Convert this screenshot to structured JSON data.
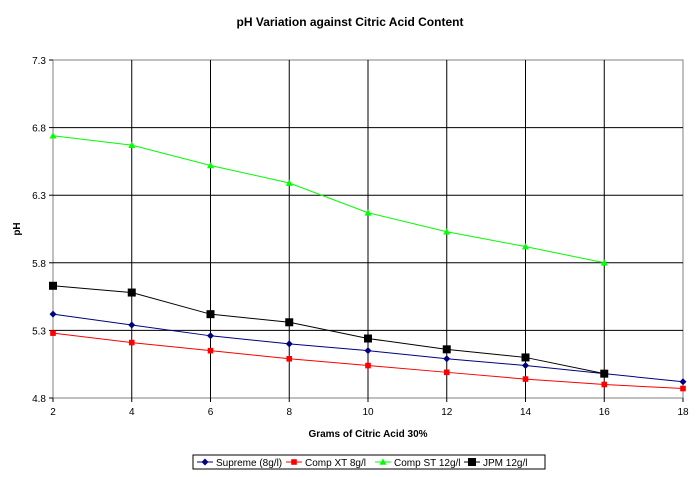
{
  "chart_data": {
    "type": "line",
    "title": "pH Variation against Citric Acid Content",
    "xlabel": "Grams of Citric Acid 30%",
    "ylabel": "pH",
    "xlim": [
      2,
      18
    ],
    "ylim": [
      4.8,
      7.3
    ],
    "x_ticks": [
      "2",
      "4",
      "6",
      "8",
      "10",
      "12",
      "14",
      "16",
      "18"
    ],
    "y_ticks": [
      "4.8",
      "5.3",
      "5.8",
      "6.3",
      "6.8",
      "7.3"
    ],
    "grid": true,
    "legend_position": "bottom",
    "series": [
      {
        "name": "Supreme (8g/l)",
        "color": "#000080",
        "marker": "diamond",
        "x": [
          2,
          4,
          6,
          8,
          10,
          12,
          14,
          16,
          18
        ],
        "y": [
          5.42,
          5.34,
          5.26,
          5.2,
          5.15,
          5.09,
          5.04,
          4.98,
          4.92
        ]
      },
      {
        "name": "Comp XT 8g/l",
        "color": "#ff0000",
        "marker": "square",
        "x": [
          2,
          4,
          6,
          8,
          10,
          12,
          14,
          16,
          18
        ],
        "y": [
          5.28,
          5.21,
          5.15,
          5.09,
          5.04,
          4.99,
          4.94,
          4.9,
          4.87
        ]
      },
      {
        "name": "Comp ST 12g/l",
        "color": "#00ff00",
        "marker": "triangle",
        "x": [
          2,
          4,
          6,
          8,
          10,
          12,
          14,
          16
        ],
        "y": [
          6.74,
          6.67,
          6.52,
          6.39,
          6.17,
          6.03,
          5.92,
          5.8
        ]
      },
      {
        "name": "JPM 12g/l",
        "color": "#000000",
        "marker": "square-large",
        "x": [
          2,
          4,
          6,
          8,
          10,
          12,
          14,
          16
        ],
        "y": [
          5.63,
          5.58,
          5.42,
          5.36,
          5.24,
          5.16,
          5.1,
          4.98
        ]
      }
    ]
  }
}
